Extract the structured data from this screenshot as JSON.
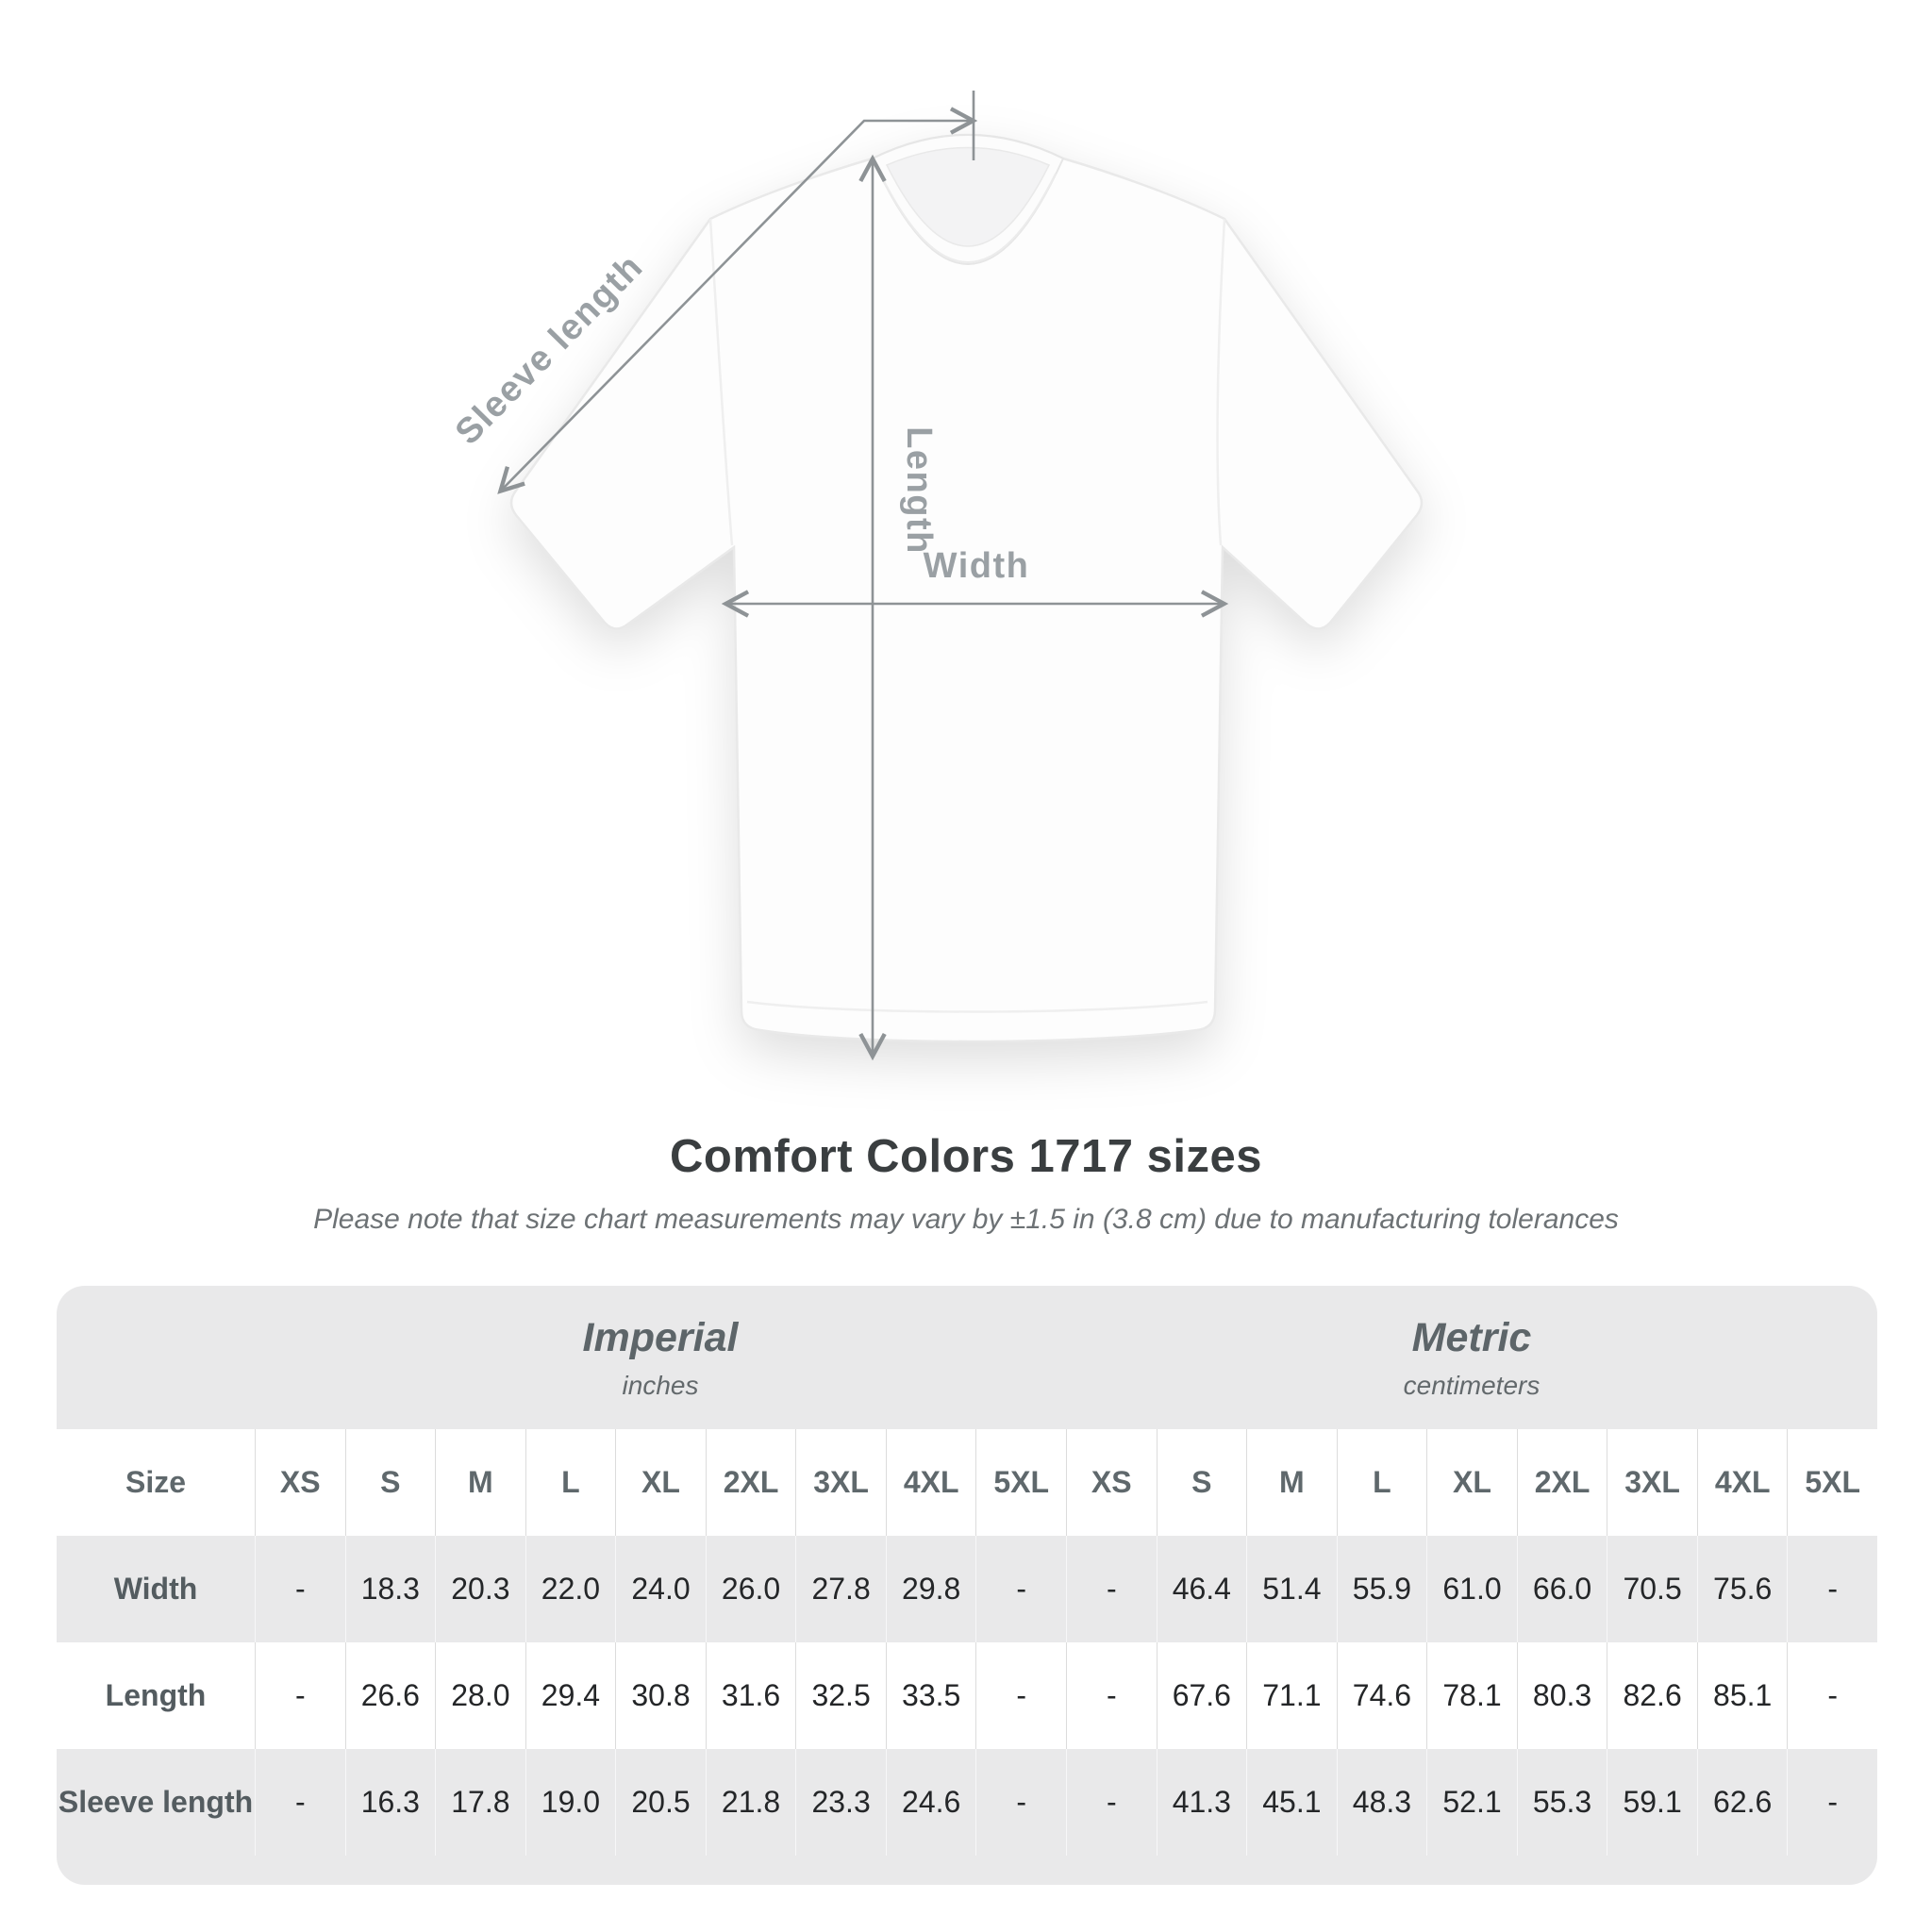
{
  "diagram": {
    "labels": {
      "sleeve_length": "Sleeve length",
      "length": "Length",
      "width": "Width"
    }
  },
  "title": "Comfort Colors 1717 sizes",
  "subtitle": "Please note that size chart measurements may vary by ±1.5 in (3.8 cm) due to manufacturing tolerances",
  "table": {
    "size_header": "Size",
    "unit_groups": [
      {
        "label": "Imperial",
        "sublabel": "inches"
      },
      {
        "label": "Metric",
        "sublabel": "centimeters"
      }
    ],
    "sizes": [
      "XS",
      "S",
      "M",
      "L",
      "XL",
      "2XL",
      "3XL",
      "4XL",
      "5XL"
    ],
    "rows": [
      {
        "label": "Width",
        "imperial": [
          "-",
          "18.3",
          "20.3",
          "22.0",
          "24.0",
          "26.0",
          "27.8",
          "29.8",
          "-"
        ],
        "metric": [
          "-",
          "46.4",
          "51.4",
          "55.9",
          "61.0",
          "66.0",
          "70.5",
          "75.6",
          "-"
        ]
      },
      {
        "label": "Length",
        "imperial": [
          "-",
          "26.6",
          "28.0",
          "29.4",
          "30.8",
          "31.6",
          "32.5",
          "33.5",
          "-"
        ],
        "metric": [
          "-",
          "67.6",
          "71.1",
          "74.6",
          "78.1",
          "80.3",
          "82.6",
          "85.1",
          "-"
        ]
      },
      {
        "label": "Sleeve length",
        "imperial": [
          "-",
          "16.3",
          "17.8",
          "19.0",
          "20.5",
          "21.8",
          "23.3",
          "24.6",
          "-"
        ],
        "metric": [
          "-",
          "41.3",
          "45.1",
          "48.3",
          "52.1",
          "55.3",
          "59.1",
          "62.6",
          "-"
        ]
      }
    ]
  },
  "colors": {
    "table_background": "#e9e9ea",
    "measure_line": "#8e9396",
    "diagram_label": "#9aa0a4",
    "title_text": "#3a3e40"
  }
}
